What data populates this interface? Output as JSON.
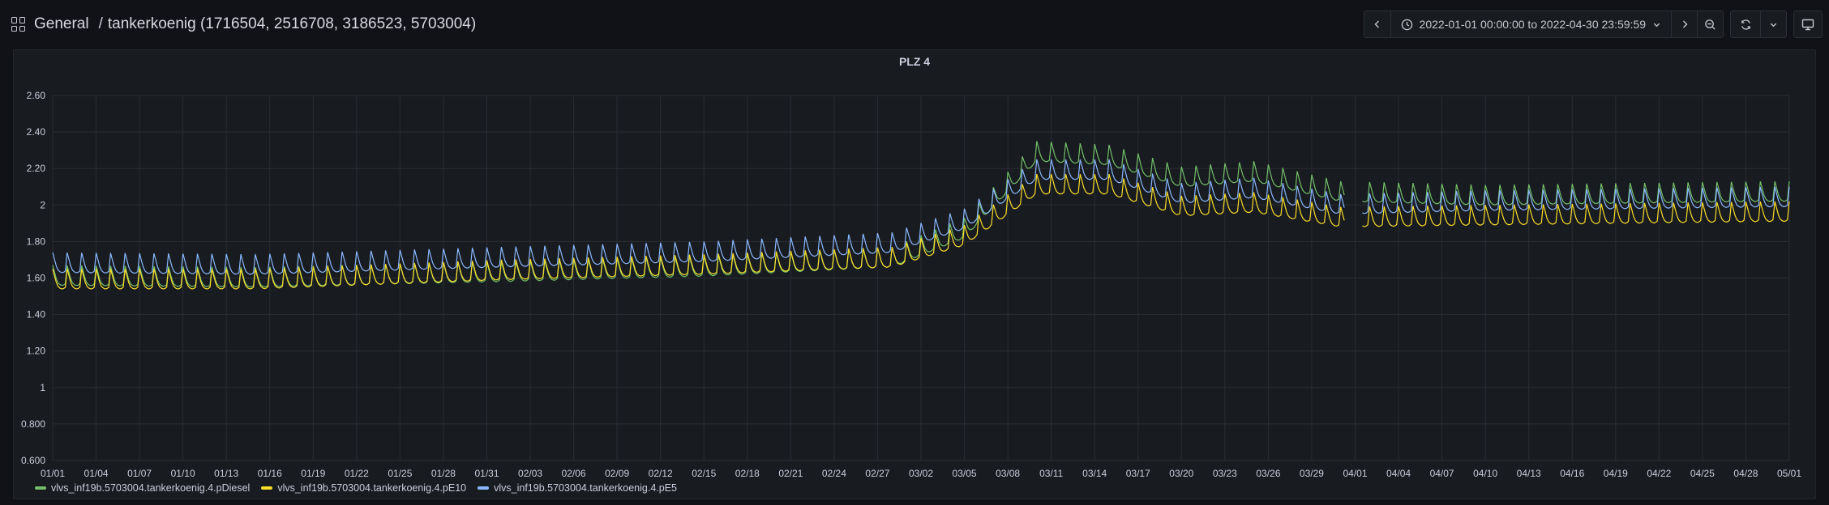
{
  "header": {
    "folder": "General",
    "separator": "/",
    "dashboard_title": "tankerkoenig (1716504, 2516708, 3186523, 5703004)",
    "time_range": "2022-01-01 00:00:00 to 2022-04-30 23:59:59"
  },
  "icons": [
    "apps-icon",
    "chevron-left-icon",
    "clock-icon",
    "chevron-down-icon",
    "chevron-right-icon",
    "zoom-out-icon",
    "refresh-icon",
    "tv-icon"
  ],
  "colors": {
    "pDiesel": "#73bf69",
    "pE10": "#fade2a",
    "pE5": "#8ab8ff",
    "background": "#111217",
    "panel": "#181b1f"
  },
  "panel": {
    "title": "PLZ 4"
  },
  "chart_data": {
    "type": "line",
    "title": "PLZ 4",
    "xlabel": "",
    "ylabel": "",
    "ylim": [
      0.6,
      2.6
    ],
    "y_ticks": [
      "0.600",
      "0.800",
      "1",
      "1.20",
      "1.40",
      "1.60",
      "1.80",
      "2",
      "2.20",
      "2.40",
      "2.60"
    ],
    "x_ticks": [
      "01/01",
      "01/04",
      "01/07",
      "01/10",
      "01/13",
      "01/16",
      "01/19",
      "01/22",
      "01/25",
      "01/28",
      "01/31",
      "02/03",
      "02/06",
      "02/09",
      "02/12",
      "02/15",
      "02/18",
      "02/21",
      "02/24",
      "02/27",
      "03/02",
      "03/05",
      "03/08",
      "03/11",
      "03/14",
      "03/17",
      "03/20",
      "03/23",
      "03/26",
      "03/29",
      "04/01",
      "04/04",
      "04/07",
      "04/10",
      "04/13",
      "04/16",
      "04/19",
      "04/22",
      "04/25",
      "04/28",
      "05/01"
    ],
    "xlim": [
      "2022-01-01",
      "2022-05-01"
    ],
    "grid": true,
    "legend_position": "bottom-left",
    "series": [
      {
        "name": "vlvs_inf19b.5703004.tankerkoenig.4.pDiesel",
        "color": "#73bf69",
        "x": [
          "2022-01-01",
          "2022-01-15",
          "2022-02-01",
          "2022-02-15",
          "2022-02-28",
          "2022-03-05",
          "2022-03-10",
          "2022-03-15",
          "2022-03-20",
          "2022-03-25",
          "2022-03-31",
          "2022-04-10",
          "2022-04-20",
          "2022-04-30"
        ],
        "y": [
          1.6,
          1.59,
          1.62,
          1.65,
          1.7,
          1.86,
          2.28,
          2.26,
          2.14,
          2.17,
          2.06,
          2.04,
          2.05,
          2.06
        ]
      },
      {
        "name": "vlvs_inf19b.5703004.tankerkoenig.4.pE10",
        "color": "#fade2a",
        "x": [
          "2022-01-01",
          "2022-01-15",
          "2022-02-01",
          "2022-02-15",
          "2022-02-28",
          "2022-03-05",
          "2022-03-10",
          "2022-03-15",
          "2022-03-20",
          "2022-03-25",
          "2022-03-31",
          "2022-04-10",
          "2022-04-20",
          "2022-04-30"
        ],
        "y": [
          1.58,
          1.58,
          1.63,
          1.66,
          1.7,
          1.82,
          2.1,
          2.1,
          1.98,
          2.0,
          1.92,
          1.93,
          1.94,
          1.95
        ]
      },
      {
        "name": "vlvs_inf19b.5703004.tankerkoenig.4.pE5",
        "color": "#8ab8ff",
        "x": [
          "2022-01-01",
          "2022-01-15",
          "2022-02-01",
          "2022-02-15",
          "2022-02-28",
          "2022-03-05",
          "2022-03-10",
          "2022-03-15",
          "2022-03-20",
          "2022-03-25",
          "2022-03-31",
          "2022-04-10",
          "2022-04-20",
          "2022-04-30"
        ],
        "y": [
          1.67,
          1.66,
          1.7,
          1.73,
          1.78,
          1.91,
          2.18,
          2.18,
          2.05,
          2.08,
          1.99,
          2.01,
          2.02,
          2.03
        ]
      }
    ]
  }
}
